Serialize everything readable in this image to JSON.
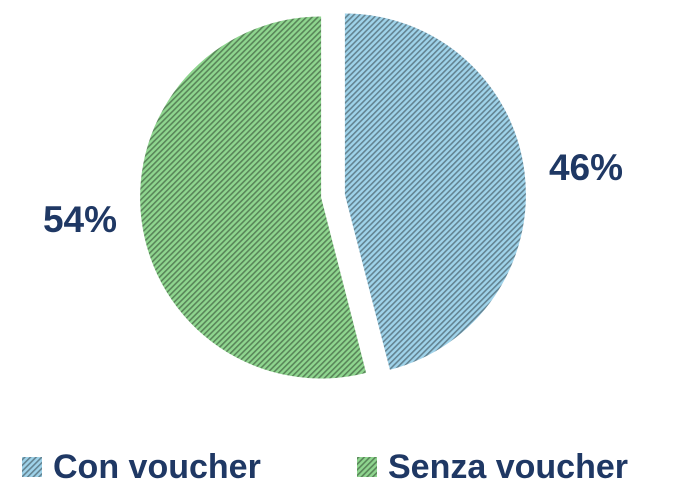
{
  "chart_data": {
    "type": "pie",
    "categories": [
      "Con voucher",
      "Senza voucher"
    ],
    "values": [
      46,
      54
    ],
    "value_labels": [
      "46%",
      "54%"
    ],
    "colors": [
      "#9fd3ea",
      "#8fd68f"
    ],
    "legend": "bottom"
  }
}
